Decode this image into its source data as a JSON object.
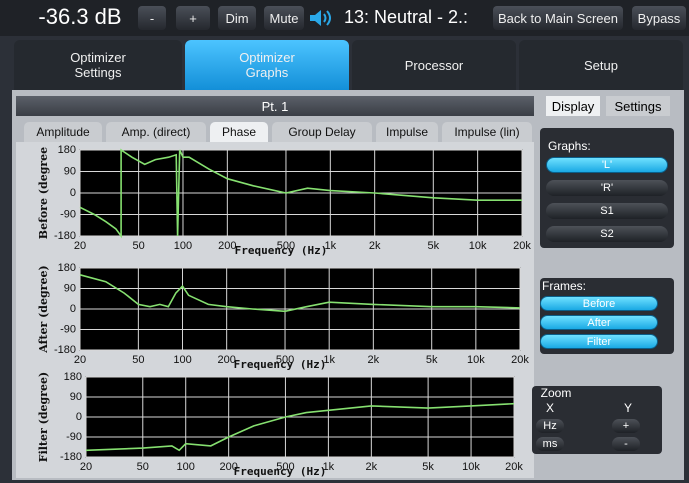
{
  "header": {
    "volume": "-36.3 dB",
    "minus": "-",
    "plus": "+",
    "dim": "Dim",
    "mute": "Mute",
    "preset": "13: Neutral - 2.:",
    "back": "Back to Main Screen",
    "bypass": "Bypass"
  },
  "main_tabs": [
    "Optimizer Settings",
    "Optimizer Graphs",
    "Processor",
    "Setup"
  ],
  "panel_title": "Pt. 1",
  "graph_tabs": [
    "Amplitude",
    "Amp. (direct)",
    "Phase",
    "Group Delay",
    "Impulse",
    "Impulse (lin)"
  ],
  "side_tabs": [
    "Display",
    "Settings"
  ],
  "graphs": {
    "title": "Graphs:",
    "items": [
      "'L'",
      "'R'",
      "S1",
      "S2"
    ]
  },
  "frames": {
    "title": "Frames:",
    "items": [
      "Before",
      "After",
      "Filter"
    ]
  },
  "zoom": {
    "title": "Zoom",
    "x": "X",
    "y": "Y",
    "x_buttons": [
      "Hz",
      "ms"
    ],
    "y_buttons": [
      "+",
      "-"
    ]
  },
  "chart_data": [
    {
      "type": "line",
      "ylabel": "Before (degree",
      "xlabel": "Frequency (Hz)",
      "log_x": true,
      "grid": true,
      "x": [
        20,
        25,
        30,
        35,
        38,
        38,
        45,
        55,
        65,
        80,
        90,
        92,
        95,
        100,
        110,
        150,
        200,
        300,
        500,
        700,
        1000,
        2000,
        5000,
        10000,
        20000
      ],
      "series": [
        {
          "color": "#86e070",
          "values": [
            -60,
            -90,
            -120,
            -150,
            -180,
            180,
            150,
            120,
            140,
            150,
            160,
            -180,
            180,
            150,
            150,
            100,
            60,
            30,
            0,
            20,
            10,
            0,
            -20,
            -30,
            -30
          ]
        }
      ],
      "xlim": [
        20,
        20000
      ],
      "ylim": [
        -180,
        180
      ],
      "xticks": [
        20,
        50,
        100,
        200,
        500,
        {
          "value": 1000,
          "label": "1k"
        },
        {
          "value": 2000,
          "label": "2k"
        },
        {
          "value": 5000,
          "label": "5k"
        },
        {
          "value": 10000,
          "label": "10k"
        },
        {
          "value": 20000,
          "label": "20k"
        }
      ],
      "yticks": [
        180,
        90,
        0,
        -90,
        -180
      ]
    },
    {
      "type": "line",
      "ylabel": "After (degree)",
      "xlabel": "Frequency (Hz)",
      "log_x": true,
      "grid": true,
      "x": [
        20,
        30,
        40,
        50,
        60,
        70,
        80,
        90,
        100,
        110,
        150,
        200,
        300,
        500,
        700,
        1000,
        2000,
        5000,
        10000,
        20000
      ],
      "series": [
        {
          "color": "#86e070",
          "values": [
            150,
            120,
            70,
            20,
            10,
            20,
            10,
            70,
            100,
            60,
            20,
            10,
            0,
            -10,
            10,
            30,
            20,
            10,
            10,
            5
          ]
        }
      ],
      "xlim": [
        20,
        20000
      ],
      "ylim": [
        -180,
        180
      ],
      "xticks": [
        20,
        50,
        100,
        200,
        500,
        {
          "value": 1000,
          "label": "1k"
        },
        {
          "value": 2000,
          "label": "2k"
        },
        {
          "value": 5000,
          "label": "5k"
        },
        {
          "value": 10000,
          "label": "10k"
        },
        {
          "value": 20000,
          "label": "20k"
        }
      ],
      "yticks": [
        180,
        90,
        0,
        -90,
        -180
      ]
    },
    {
      "type": "line",
      "ylabel": "Filter (degree)",
      "xlabel": "Frequency (Hz)",
      "log_x": true,
      "grid": true,
      "x": [
        20,
        50,
        80,
        90,
        100,
        150,
        200,
        300,
        500,
        700,
        1000,
        2000,
        5000,
        10000,
        20000
      ],
      "series": [
        {
          "color": "#86e070",
          "values": [
            -150,
            -140,
            -130,
            -150,
            -120,
            -130,
            -90,
            -40,
            0,
            20,
            30,
            50,
            40,
            50,
            60
          ]
        }
      ],
      "xlim": [
        20,
        20000
      ],
      "ylim": [
        -180,
        180
      ],
      "xticks": [
        20,
        50,
        100,
        200,
        500,
        {
          "value": 1000,
          "label": "1k"
        },
        {
          "value": 2000,
          "label": "2k"
        },
        {
          "value": 5000,
          "label": "5k"
        },
        {
          "value": 10000,
          "label": "10k"
        },
        {
          "value": 20000,
          "label": "20k"
        }
      ],
      "yticks": [
        180,
        90,
        0,
        -90,
        -180
      ]
    }
  ]
}
